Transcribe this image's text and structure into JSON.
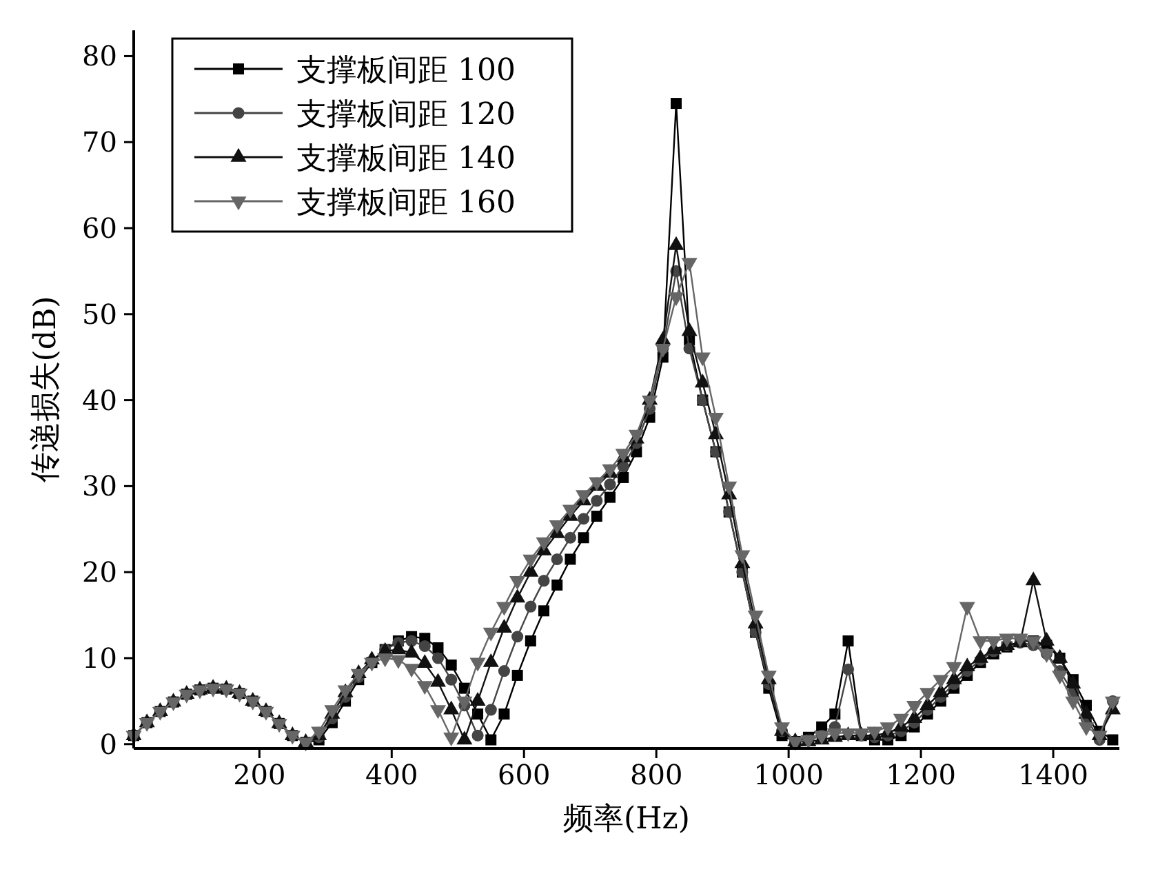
{
  "chart_data": {
    "type": "line",
    "xlabel": "频率(Hz)",
    "ylabel": "传递损失(dB)",
    "xlim": [
      10,
      1500
    ],
    "ylim": [
      -0.5,
      83
    ],
    "xticks": [
      200,
      400,
      600,
      800,
      1000,
      1200,
      1400
    ],
    "yticks": [
      0,
      10,
      20,
      30,
      40,
      50,
      60,
      70,
      80
    ],
    "grid": false,
    "legend": "top left",
    "x": [
      10,
      30,
      50,
      70,
      90,
      110,
      130,
      150,
      170,
      190,
      210,
      230,
      250,
      270,
      290,
      310,
      330,
      350,
      370,
      390,
      410,
      430,
      450,
      470,
      490,
      510,
      530,
      550,
      570,
      590,
      610,
      630,
      650,
      670,
      690,
      710,
      730,
      750,
      770,
      790,
      810,
      830,
      850,
      870,
      890,
      910,
      930,
      950,
      970,
      990,
      1010,
      1030,
      1050,
      1070,
      1090,
      1110,
      1130,
      1150,
      1170,
      1190,
      1210,
      1230,
      1250,
      1270,
      1290,
      1310,
      1330,
      1350,
      1370,
      1390,
      1410,
      1430,
      1450,
      1470,
      1490
    ],
    "series": [
      {
        "name": "支撑板间距 100",
        "color": "#000000",
        "marker": "square",
        "values": [
          1,
          2.5,
          3.8,
          4.9,
          5.8,
          6.3,
          6.5,
          6.4,
          5.9,
          5,
          3.8,
          2.4,
          1,
          0.2,
          0.5,
          2.5,
          5,
          7.5,
          9.5,
          11,
          12,
          12.5,
          12.3,
          11.2,
          9.2,
          6.5,
          3.5,
          0.5,
          3.5,
          8,
          12,
          15.5,
          18.5,
          21.5,
          24,
          26.5,
          28.7,
          31,
          34,
          38,
          45,
          74.5,
          47,
          40,
          34,
          27,
          20,
          13,
          6.5,
          1,
          0.3,
          0.8,
          2,
          3.5,
          12,
          1,
          0.5,
          0.5,
          1,
          2,
          3.5,
          5,
          6.5,
          8,
          9.5,
          10.5,
          11.3,
          12,
          12,
          11.5,
          10,
          7.5,
          4.5,
          1.5,
          0.5
        ]
      },
      {
        "name": "支撑板间距 120",
        "color": "#444444",
        "marker": "circle",
        "values": [
          1,
          2.5,
          3.8,
          4.9,
          5.8,
          6.3,
          6.5,
          6.4,
          5.9,
          5,
          3.8,
          2.4,
          1,
          0.2,
          0.8,
          3,
          5.5,
          7.8,
          9.6,
          11,
          11.8,
          12,
          11.4,
          10,
          7.5,
          4.5,
          1,
          4,
          8.5,
          12.5,
          16,
          19,
          21.5,
          24,
          26.2,
          28.3,
          30.2,
          32.3,
          35,
          39,
          46,
          55,
          46,
          40,
          34,
          27,
          20,
          13,
          7,
          1.5,
          0.3,
          0.5,
          1,
          2,
          8.7,
          1,
          0.8,
          1,
          1.5,
          2.5,
          4,
          5.5,
          7,
          8.5,
          9.8,
          10.8,
          11.5,
          11.8,
          11.5,
          10.5,
          8.5,
          6,
          3,
          0.5,
          5
        ]
      },
      {
        "name": "支撑板间距 140",
        "color": "#111111",
        "marker": "triangle",
        "values": [
          1,
          2.5,
          3.8,
          4.9,
          5.8,
          6.3,
          6.5,
          6.4,
          5.9,
          5,
          3.8,
          2.4,
          1,
          0.2,
          1,
          3.5,
          6,
          8.2,
          9.8,
          10.8,
          11,
          10.6,
          9.4,
          7.2,
          4,
          0.5,
          5,
          9.5,
          13.5,
          17,
          20,
          22.5,
          24.5,
          26.5,
          28.3,
          30,
          31.5,
          33.3,
          35.5,
          40,
          47,
          58,
          48,
          42,
          36,
          29,
          21,
          14,
          7.5,
          1.5,
          0.3,
          0.3,
          0.5,
          0.8,
          1,
          1,
          1,
          1.3,
          2,
          3,
          4.5,
          6,
          7.5,
          9,
          10,
          11,
          11.5,
          11.8,
          19,
          12,
          10,
          7,
          3.5,
          1,
          4
        ]
      },
      {
        "name": "支撑板间距 160",
        "color": "#666666",
        "marker": "triangle-down",
        "values": [
          1,
          2.5,
          3.8,
          4.9,
          5.8,
          6.3,
          6.5,
          6.4,
          5.9,
          5,
          3.8,
          2.4,
          1,
          0.2,
          1.5,
          4,
          6.3,
          8.2,
          9.5,
          10,
          9.8,
          8.8,
          6.8,
          4,
          0.8,
          5,
          9.5,
          13,
          16,
          19,
          21.5,
          23.5,
          25.5,
          27.3,
          29,
          30.5,
          32,
          33.8,
          36,
          40,
          46,
          52,
          56,
          45,
          38,
          30,
          22,
          15,
          8,
          2,
          0.3,
          0.5,
          1,
          1.3,
          1.3,
          1.3,
          1.5,
          2,
          3,
          4.5,
          6,
          7.5,
          9,
          16,
          12,
          12,
          12.3,
          12.3,
          12,
          10.5,
          8,
          5,
          2,
          1,
          5
        ]
      }
    ]
  }
}
